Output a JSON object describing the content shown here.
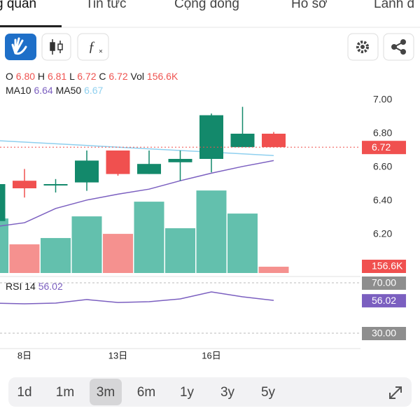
{
  "tabs": [
    "g quan",
    "Tin tức",
    "Cộng đồng",
    "Hồ sơ",
    "Lãnh đ"
  ],
  "legend": {
    "o": "O",
    "o_val": "6.80",
    "h": "H",
    "h_val": "6.81",
    "l": "L",
    "l_val": "6.72",
    "c": "C",
    "c_val": "6.72",
    "vol": "Vol",
    "vol_val": "156.6K",
    "ma10_val": "6.64",
    "ma50_val": "6.67"
  },
  "chart_data": {
    "type": "candlestick",
    "categories": [
      null,
      "8日",
      null,
      null,
      "13日",
      null,
      null,
      "16日",
      null,
      null
    ],
    "open": [
      6.28,
      6.52,
      6.5,
      6.51,
      6.7,
      6.56,
      6.63,
      6.65,
      6.72,
      6.8
    ],
    "high": [
      6.5,
      6.59,
      6.53,
      6.7,
      6.7,
      6.7,
      6.7,
      6.92,
      6.96,
      6.81
    ],
    "low": [
      6.25,
      6.42,
      6.45,
      6.46,
      6.55,
      6.56,
      6.52,
      6.57,
      6.72,
      6.72
    ],
    "close": [
      6.5,
      6.475,
      6.5,
      6.64,
      6.56,
      6.62,
      6.65,
      6.91,
      6.8,
      6.72
    ],
    "up_color": "#13896b",
    "down_color": "#f0504f",
    "ylim": [
      6.0,
      7.1
    ],
    "yticks": [
      {
        "value": 6.2,
        "label": "6.20"
      },
      {
        "value": 6.4,
        "label": "6.40"
      },
      {
        "value": 6.6,
        "label": "6.60"
      },
      {
        "value": 6.8,
        "label": "6.80"
      },
      {
        "value": 7.0,
        "label": "7.00"
      }
    ],
    "ma": [
      {
        "name": "MA10",
        "color": "#7b5fc0",
        "values": [
          6.245,
          6.27,
          6.355,
          6.405,
          6.44,
          6.47,
          6.52,
          6.565,
          6.605,
          6.64
        ]
      },
      {
        "name": "MA50",
        "color": "#8fd0ef",
        "values": [
          6.76,
          6.75,
          6.74,
          6.73,
          6.72,
          6.71,
          6.7,
          6.69,
          6.68,
          6.67
        ]
      }
    ],
    "volume": {
      "values": [
        1357,
        713,
        870,
        1409,
        974,
        1775,
        1114,
        2053,
        1479,
        156.6
      ],
      "ylim": [
        0,
        2700
      ],
      "up_color": "#63c0ad",
      "down_color": "#f5918f",
      "last_label": "156.6K"
    },
    "rsi": {
      "name": "RSI 14",
      "color": "#7b5fc0",
      "values": [
        53.9,
        53.3,
        53.9,
        56.7,
        54.4,
        55.0,
        57.2,
        62.8,
        58.9,
        56.02
      ],
      "ylim": [
        20,
        80
      ],
      "yticks": [
        {
          "value": 70,
          "label": "70.00"
        },
        {
          "value": 30,
          "label": "30.00"
        }
      ]
    }
  },
  "timeframes": [
    "1d",
    "1m",
    "3m",
    "6m",
    "1y",
    "3y",
    "5y"
  ],
  "selected_timeframe": "3m"
}
